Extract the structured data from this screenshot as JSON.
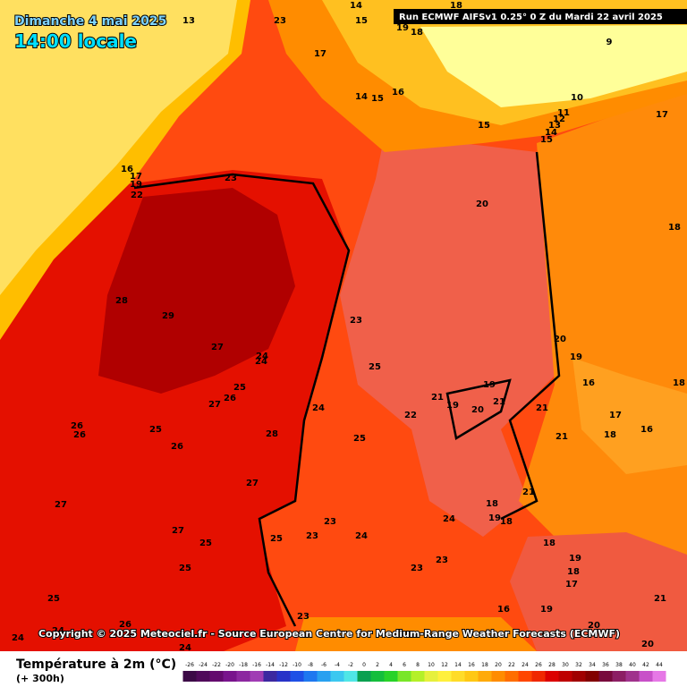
{
  "header": {
    "date": "Dimanche 4 mai 2025",
    "time": "14:00 locale",
    "run": "Run ECMWF AIFSv1 0.25° 0 Z du Mardi 22 avril 2025"
  },
  "copyright": "Copyright © 2025 Meteociel.fr - Source European Centre for Medium-Range Weather Forecasts (ECMWF)",
  "legend": {
    "title": "Température à 2m (°C)",
    "subtitle": "(+ 300h)",
    "scale": [
      -26,
      -24,
      -22,
      -20,
      -18,
      -16,
      -14,
      -12,
      -10,
      -8,
      -6,
      -4,
      -2,
      0,
      2,
      4,
      6,
      8,
      10,
      12,
      14,
      16,
      18,
      20,
      22,
      24,
      26,
      28,
      30,
      32,
      34,
      36,
      38,
      40,
      42,
      44
    ],
    "colors": [
      "#3c0a46",
      "#500a5a",
      "#640a6e",
      "#78148c",
      "#8c28a0",
      "#a03cb4",
      "#3c28a0",
      "#2832c8",
      "#1e50e6",
      "#1e78f0",
      "#28a0f0",
      "#3cc8f0",
      "#50e6e6",
      "#0aa050",
      "#14be3c",
      "#28d228",
      "#78e628",
      "#b4f028",
      "#e6f03c",
      "#fff03c",
      "#ffdc28",
      "#ffc814",
      "#ffaa0a",
      "#ff8c00",
      "#ff6e00",
      "#ff4600",
      "#f02800",
      "#dc0000",
      "#be0000",
      "#a00000",
      "#820000",
      "#780a3c",
      "#8c1e64",
      "#a0328c",
      "#c850c8",
      "#e678e6"
    ]
  },
  "contour_labels": [
    13,
    23,
    14,
    15,
    19,
    18,
    18,
    17,
    14,
    15,
    16,
    16,
    17,
    19,
    22,
    23,
    9,
    10,
    11,
    12,
    13,
    14,
    15,
    15,
    17,
    20,
    18,
    28,
    29,
    27,
    23,
    24,
    24,
    25,
    20,
    19,
    25,
    27,
    26,
    24,
    22,
    21,
    19,
    19,
    20,
    21,
    21,
    16,
    18,
    17,
    18,
    16,
    21,
    26,
    26,
    25,
    26,
    28,
    25,
    27,
    21,
    27,
    18,
    19,
    18,
    24,
    23,
    27,
    25,
    25,
    23,
    24,
    18,
    19,
    18,
    17,
    25,
    23,
    23,
    25,
    21,
    16,
    19,
    23,
    26,
    20,
    24,
    24,
    24,
    20
  ]
}
